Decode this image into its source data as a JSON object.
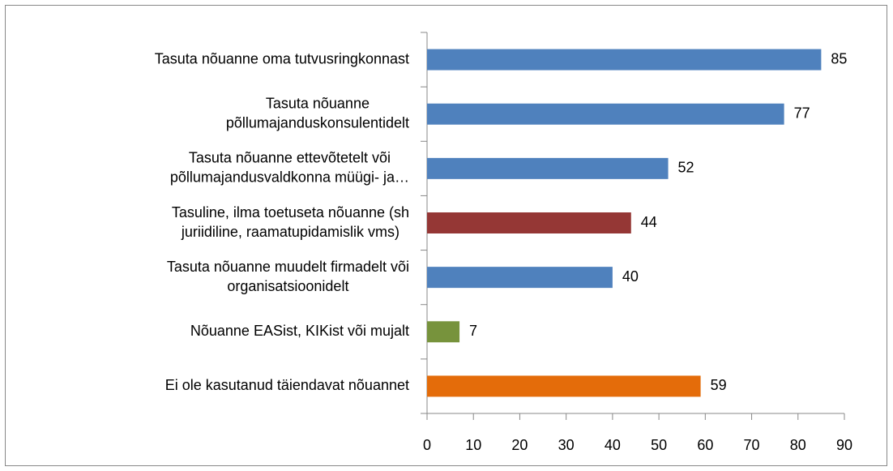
{
  "chart_data": {
    "type": "bar",
    "orientation": "horizontal",
    "categories": [
      [
        "Tasuta nõuanne oma tutvusringkonnast"
      ],
      [
        "Tasuta nõuanne",
        "põllumajanduskonsulentidelt"
      ],
      [
        "Tasuta nõuanne ettevõtetelt või",
        "põllumajandusvaldkonna müügi- ja…"
      ],
      [
        "Tasuline, ilma toetuseta nõuanne (sh",
        "juriidiline, raamatupidamislik vms)"
      ],
      [
        "Tasuta nõuanne muudelt firmadelt või",
        "organisatsioonidelt"
      ],
      [
        "Nõuanne EASist, KIKist või mujalt"
      ],
      [
        "Ei ole kasutanud täiendavat nõuannet"
      ]
    ],
    "values": [
      85,
      77,
      52,
      44,
      40,
      7,
      59
    ],
    "colors": [
      "#4f81bd",
      "#4f81bd",
      "#4f81bd",
      "#953735",
      "#4f81bd",
      "#77933c",
      "#e46c0a"
    ],
    "xlim": [
      0,
      90
    ],
    "xticks": [
      0,
      10,
      20,
      30,
      40,
      50,
      60,
      70,
      80,
      90
    ]
  }
}
